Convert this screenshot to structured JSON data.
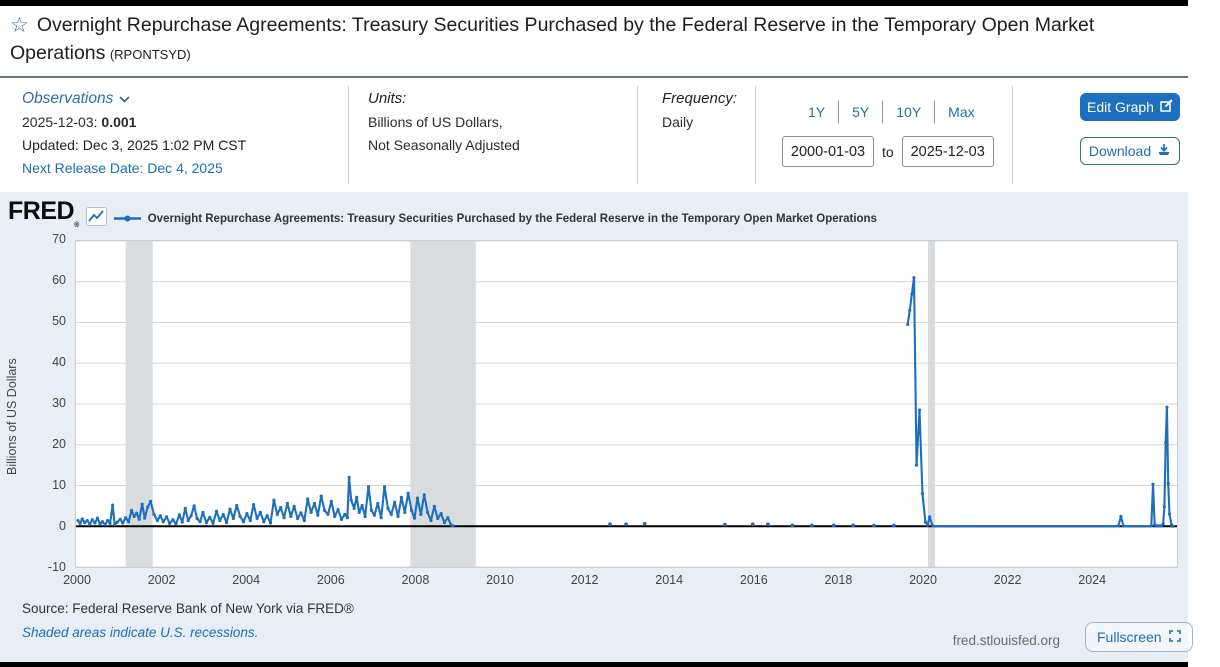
{
  "header": {
    "title": "Overnight Repurchase Agreements: Treasury Securities Purchased by the Federal Reserve in the Temporary Open Market Operations",
    "series_id": "(RPONTSYD)",
    "star_icon": "star-outline"
  },
  "observations": {
    "label": "Observations",
    "latest_date": "2025-12-03:",
    "latest_value": "0.001",
    "updated": "Updated: Dec 3, 2025 1:02 PM CST",
    "next_release": "Next Release Date: Dec 4, 2025"
  },
  "units": {
    "label": "Units:",
    "line1": "Billions of US Dollars,",
    "line2": "Not Seasonally Adjusted"
  },
  "frequency": {
    "label": "Frequency:",
    "value": "Daily"
  },
  "range": {
    "buttons": [
      "1Y",
      "5Y",
      "10Y",
      "Max"
    ],
    "start": "2000-01-03",
    "to_label": "to",
    "end": "2025-12-03"
  },
  "actions": {
    "edit_graph": "Edit Graph",
    "download": "Download",
    "fullscreen": "Fullscreen"
  },
  "chart": {
    "brand": "FRED",
    "brand_reg": "®",
    "source": "Source: Federal Reserve Bank of New York via FRED®",
    "recession_note": "Shaded areas indicate U.S. recessions.",
    "watermark": "fred.stlouisfed.org"
  },
  "chart_data": {
    "type": "line",
    "legend": "Overnight Repurchase Agreements: Treasury Securities Purchased by the Federal Reserve in the Temporary Open Market Operations",
    "ylabel": "Billions of US Dollars",
    "ylim": [
      -10,
      70
    ],
    "yticks": [
      70,
      60,
      50,
      40,
      30,
      20,
      10,
      0,
      -10
    ],
    "xticks": [
      2000,
      2002,
      2004,
      2006,
      2008,
      2010,
      2012,
      2014,
      2016,
      2018,
      2020,
      2022,
      2024
    ],
    "xlim": [
      1999.95,
      2026.05
    ],
    "grid": "horizontal",
    "legend_position": "top",
    "line_color": "#1d6fbe",
    "zero_line": 0,
    "recessions": [
      [
        2001.13,
        2001.77
      ],
      [
        2007.87,
        2009.42
      ],
      [
        2020.13,
        2020.3
      ]
    ],
    "segments": [
      {
        "name": "daily-operations-2000-2008",
        "markers": "points",
        "points": [
          [
            2000.0,
            1.4
          ],
          [
            2000.05,
            0.7
          ],
          [
            2000.1,
            1.8
          ],
          [
            2000.16,
            0.9
          ],
          [
            2000.22,
            1.4
          ],
          [
            2000.28,
            0.5
          ],
          [
            2000.34,
            1.6
          ],
          [
            2000.4,
            0.8
          ],
          [
            2000.46,
            2.0
          ],
          [
            2000.52,
            0.6
          ],
          [
            2000.58,
            1.1
          ],
          [
            2000.64,
            0.4
          ],
          [
            2000.7,
            1.4
          ],
          [
            2000.76,
            0.7
          ],
          [
            2000.82,
            5.2
          ],
          [
            2000.87,
            0.4
          ],
          [
            2000.93,
            1.0
          ],
          [
            2001.0,
            1.7
          ],
          [
            2001.06,
            0.8
          ],
          [
            2001.13,
            2.1
          ],
          [
            2001.2,
            1.1
          ],
          [
            2001.27,
            3.9
          ],
          [
            2001.33,
            2.4
          ],
          [
            2001.39,
            3.2
          ],
          [
            2001.45,
            1.7
          ],
          [
            2001.52,
            5.4
          ],
          [
            2001.58,
            2.0
          ],
          [
            2001.65,
            4.7
          ],
          [
            2001.72,
            6.1
          ],
          [
            2001.8,
            2.9
          ],
          [
            2001.88,
            1.4
          ],
          [
            2001.95,
            2.6
          ],
          [
            2002.02,
            1.1
          ],
          [
            2002.1,
            2.3
          ],
          [
            2002.17,
            0.7
          ],
          [
            2002.25,
            1.6
          ],
          [
            2002.32,
            0.5
          ],
          [
            2002.4,
            2.8
          ],
          [
            2002.47,
            1.0
          ],
          [
            2002.54,
            4.4
          ],
          [
            2002.61,
            1.4
          ],
          [
            2002.68,
            2.6
          ],
          [
            2002.75,
            5.0
          ],
          [
            2002.82,
            1.9
          ],
          [
            2002.89,
            1.1
          ],
          [
            2002.96,
            3.4
          ],
          [
            2003.04,
            0.9
          ],
          [
            2003.12,
            2.2
          ],
          [
            2003.2,
            0.7
          ],
          [
            2003.28,
            3.7
          ],
          [
            2003.36,
            1.4
          ],
          [
            2003.44,
            2.9
          ],
          [
            2003.52,
            0.9
          ],
          [
            2003.6,
            4.2
          ],
          [
            2003.68,
            1.9
          ],
          [
            2003.76,
            5.1
          ],
          [
            2003.84,
            2.4
          ],
          [
            2003.92,
            1.1
          ],
          [
            2004.0,
            3.1
          ],
          [
            2004.08,
            1.4
          ],
          [
            2004.16,
            5.3
          ],
          [
            2004.24,
            1.9
          ],
          [
            2004.32,
            3.4
          ],
          [
            2004.4,
            1.1
          ],
          [
            2004.48,
            2.6
          ],
          [
            2004.56,
            0.8
          ],
          [
            2004.64,
            6.4
          ],
          [
            2004.72,
            2.9
          ],
          [
            2004.8,
            4.6
          ],
          [
            2004.88,
            2.1
          ],
          [
            2004.96,
            5.6
          ],
          [
            2005.04,
            2.4
          ],
          [
            2005.12,
            4.9
          ],
          [
            2005.2,
            1.9
          ],
          [
            2005.28,
            3.3
          ],
          [
            2005.36,
            1.4
          ],
          [
            2005.44,
            6.7
          ],
          [
            2005.52,
            3.4
          ],
          [
            2005.6,
            5.6
          ],
          [
            2005.68,
            2.7
          ],
          [
            2005.76,
            7.4
          ],
          [
            2005.84,
            3.9
          ],
          [
            2005.92,
            2.9
          ],
          [
            2006.0,
            6.1
          ],
          [
            2006.08,
            2.4
          ],
          [
            2006.16,
            4.1
          ],
          [
            2006.24,
            1.7
          ],
          [
            2006.32,
            2.9
          ],
          [
            2006.38,
            2.1
          ],
          [
            2006.42,
            12.0
          ],
          [
            2006.47,
            6.4
          ],
          [
            2006.54,
            4.4
          ],
          [
            2006.6,
            7.1
          ],
          [
            2006.66,
            3.4
          ],
          [
            2006.73,
            5.1
          ],
          [
            2006.8,
            2.4
          ],
          [
            2006.88,
            9.7
          ],
          [
            2006.95,
            3.9
          ],
          [
            2007.02,
            2.7
          ],
          [
            2007.1,
            5.6
          ],
          [
            2007.18,
            2.1
          ],
          [
            2007.26,
            9.7
          ],
          [
            2007.34,
            4.4
          ],
          [
            2007.42,
            2.9
          ],
          [
            2007.5,
            5.9
          ],
          [
            2007.58,
            2.4
          ],
          [
            2007.66,
            7.1
          ],
          [
            2007.74,
            3.4
          ],
          [
            2007.82,
            8.1
          ],
          [
            2007.9,
            3.9
          ],
          [
            2007.97,
            2.0
          ],
          [
            2008.04,
            6.9
          ],
          [
            2008.12,
            2.9
          ],
          [
            2008.2,
            7.7
          ],
          [
            2008.28,
            3.4
          ],
          [
            2008.36,
            1.4
          ],
          [
            2008.44,
            4.9
          ],
          [
            2008.52,
            1.9
          ],
          [
            2008.6,
            3.1
          ],
          [
            2008.68,
            0.9
          ],
          [
            2008.76,
            2.1
          ],
          [
            2008.83,
            0.4
          ],
          [
            2008.88,
            0.1
          ]
        ]
      },
      {
        "name": "isolated-test-operations-2012-2019",
        "markers": "dots_only",
        "points": [
          [
            2012.6,
            0.5
          ],
          [
            2012.98,
            0.5
          ],
          [
            2013.42,
            0.6
          ],
          [
            2015.32,
            0.4
          ],
          [
            2015.98,
            0.5
          ],
          [
            2016.34,
            0.5
          ],
          [
            2016.92,
            0.2
          ],
          [
            2017.38,
            0.2
          ],
          [
            2017.9,
            0.2
          ],
          [
            2018.36,
            0.2
          ],
          [
            2018.85,
            0.15
          ],
          [
            2019.32,
            0.15
          ]
        ]
      },
      {
        "name": "sep-2019-repo-spike",
        "markers": "points",
        "points": [
          [
            2019.65,
            49.5
          ],
          [
            2019.7,
            53.0
          ],
          [
            2019.75,
            57.0
          ],
          [
            2019.8,
            61.0
          ],
          [
            2019.86,
            15.0
          ],
          [
            2019.93,
            28.5
          ],
          [
            2020.0,
            8.0
          ],
          [
            2020.07,
            1.0
          ],
          [
            2020.12,
            0.3
          ],
          [
            2020.17,
            2.3
          ],
          [
            2020.23,
            0.3
          ]
        ]
      },
      {
        "name": "standing-repo-facility-2020-2024",
        "markers": "dense",
        "dense": true,
        "points": [
          [
            2020.26,
            0.001
          ],
          [
            2024.6,
            0.001
          ]
        ]
      },
      {
        "name": "sep-2024-quarter-end",
        "markers": "points",
        "points": [
          [
            2024.64,
            0.1
          ],
          [
            2024.7,
            2.4
          ],
          [
            2024.76,
            0.1
          ]
        ]
      },
      {
        "name": "flat-2025",
        "markers": "dense",
        "dense": true,
        "points": [
          [
            2024.8,
            0.001
          ],
          [
            2025.4,
            0.001
          ]
        ]
      },
      {
        "name": "late-2025-spikes",
        "markers": "points",
        "points": [
          [
            2025.42,
            0.1
          ],
          [
            2025.46,
            10.3
          ],
          [
            2025.5,
            0.4
          ],
          [
            2025.54,
            0.1
          ],
          [
            2025.58,
            0.1
          ],
          [
            2025.62,
            0.1
          ],
          [
            2025.66,
            0.1
          ],
          [
            2025.7,
            0.6
          ],
          [
            2025.73,
            4.8
          ],
          [
            2025.76,
            20.5
          ],
          [
            2025.79,
            29.2
          ],
          [
            2025.82,
            10.5
          ],
          [
            2025.85,
            3.0
          ],
          [
            2025.9,
            0.3
          ],
          [
            2025.93,
            0.001
          ]
        ]
      }
    ]
  }
}
